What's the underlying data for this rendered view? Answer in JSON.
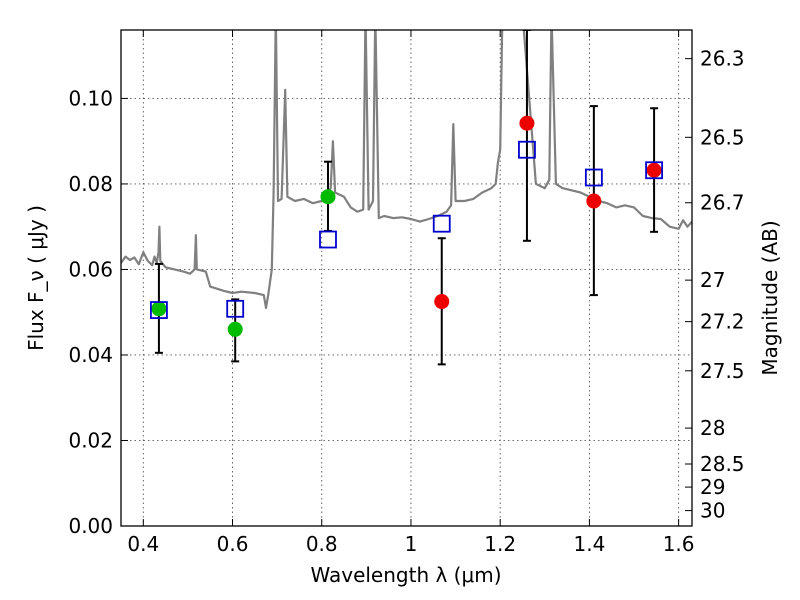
{
  "chart_data": {
    "type": "scatter",
    "xlabel": "Wavelength  λ (μm)",
    "ylabel": "Flux  F_ν  ( μJy )",
    "ylabel_right": "Magnitude (AB)",
    "xlim": [
      0.35,
      1.63
    ],
    "ylim": [
      0.0,
      0.116
    ],
    "grid": true,
    "x_ticks": [
      0.4,
      0.6,
      0.8,
      1.0,
      1.2,
      1.4,
      1.6
    ],
    "x_tick_labels": [
      "0.4",
      "0.6",
      "0.8",
      "1",
      "1.2",
      "1.4",
      "1.6"
    ],
    "y_ticks": [
      0.0,
      0.02,
      0.04,
      0.06,
      0.08,
      0.1
    ],
    "y_tick_labels": [
      "0.00",
      "0.02",
      "0.04",
      "0.06",
      "0.08",
      "0.10"
    ],
    "right_ticks": [
      {
        "label": "26.3",
        "flux": 0.1093
      },
      {
        "label": "26.5",
        "flux": 0.0909
      },
      {
        "label": "26.7",
        "flux": 0.0756
      },
      {
        "label": "27",
        "flux": 0.0575
      },
      {
        "label": "27.2",
        "flux": 0.0478
      },
      {
        "label": "27.5",
        "flux": 0.0363
      },
      {
        "label": "28",
        "flux": 0.0229
      },
      {
        "label": "28.5",
        "flux": 0.0145
      },
      {
        "label": "29",
        "flux": 0.0091
      },
      {
        "label": "30",
        "flux": 0.0036
      }
    ],
    "colors": {
      "model": "#808080",
      "green": "#00bb00",
      "red": "#ee0000",
      "square": "#0000cc",
      "errorbar": "#000000",
      "grid": "#555555"
    },
    "series": [
      {
        "points": [
          {
            "x": 0.435,
            "y": 0.0508,
            "yerr_low": 0.0405,
            "yerr_high": 0.0613
          },
          {
            "x": 0.606,
            "y": 0.046,
            "yerr_low": 0.0385,
            "yerr_high": 0.053
          },
          {
            "x": 0.814,
            "y": 0.077,
            "yerr_low": 0.069,
            "yerr_high": 0.0852
          }
        ],
        "color": "green",
        "marker": "circle"
      },
      {
        "points": [
          {
            "x": 1.069,
            "y": 0.0525,
            "yerr_low": 0.0378,
            "yerr_high": 0.0673
          },
          {
            "x": 1.26,
            "y": 0.0942,
            "yerr_low": 0.0667,
            "yerr_high": 0.116
          },
          {
            "x": 1.41,
            "y": 0.076,
            "yerr_low": 0.054,
            "yerr_high": 0.0982
          },
          {
            "x": 1.545,
            "y": 0.0832,
            "yerr_low": 0.0688,
            "yerr_high": 0.0977
          }
        ],
        "color": "red",
        "marker": "circle"
      },
      {
        "points": [
          {
            "x": 0.435,
            "y": 0.0505
          },
          {
            "x": 0.606,
            "y": 0.0508
          },
          {
            "x": 0.814,
            "y": 0.067
          },
          {
            "x": 1.069,
            "y": 0.0707
          },
          {
            "x": 1.26,
            "y": 0.088
          },
          {
            "x": 1.41,
            "y": 0.0815
          },
          {
            "x": 1.545,
            "y": 0.0832
          }
        ],
        "color": "square",
        "marker": "open-square"
      },
      {
        "points": [
          [
            0.35,
            0.0615
          ],
          [
            0.36,
            0.063
          ],
          [
            0.37,
            0.0622
          ],
          [
            0.38,
            0.0628
          ],
          [
            0.39,
            0.0612
          ],
          [
            0.4,
            0.064
          ],
          [
            0.41,
            0.062
          ],
          [
            0.42,
            0.061
          ],
          [
            0.425,
            0.063
          ],
          [
            0.43,
            0.0615
          ],
          [
            0.434,
            0.064
          ],
          [
            0.436,
            0.07
          ],
          [
            0.438,
            0.062
          ],
          [
            0.45,
            0.0605
          ],
          [
            0.47,
            0.06
          ],
          [
            0.49,
            0.0595
          ],
          [
            0.505,
            0.059
          ],
          [
            0.515,
            0.06
          ],
          [
            0.518,
            0.068
          ],
          [
            0.52,
            0.06
          ],
          [
            0.54,
            0.0595
          ],
          [
            0.55,
            0.056
          ],
          [
            0.58,
            0.055
          ],
          [
            0.6,
            0.0545
          ],
          [
            0.62,
            0.0548
          ],
          [
            0.65,
            0.0545
          ],
          [
            0.67,
            0.054
          ],
          [
            0.675,
            0.051
          ],
          [
            0.68,
            0.054
          ],
          [
            0.688,
            0.06
          ],
          [
            0.692,
            0.078
          ],
          [
            0.697,
            0.12
          ],
          [
            0.702,
            0.076
          ],
          [
            0.71,
            0.0765
          ],
          [
            0.718,
            0.102
          ],
          [
            0.723,
            0.077
          ],
          [
            0.74,
            0.076
          ],
          [
            0.76,
            0.0765
          ],
          [
            0.78,
            0.0755
          ],
          [
            0.8,
            0.076
          ],
          [
            0.82,
            0.079
          ],
          [
            0.825,
            0.09
          ],
          [
            0.83,
            0.078
          ],
          [
            0.85,
            0.077
          ],
          [
            0.865,
            0.0745
          ],
          [
            0.88,
            0.0735
          ],
          [
            0.893,
            0.074
          ],
          [
            0.898,
            0.12
          ],
          [
            0.905,
            0.074
          ],
          [
            0.915,
            0.076
          ],
          [
            0.92,
            0.12
          ],
          [
            0.928,
            0.072
          ],
          [
            0.94,
            0.0725
          ],
          [
            0.96,
            0.072
          ],
          [
            0.98,
            0.0722
          ],
          [
            1.0,
            0.0718
          ],
          [
            1.02,
            0.0712
          ],
          [
            1.04,
            0.0718
          ],
          [
            1.06,
            0.0725
          ],
          [
            1.08,
            0.0735
          ],
          [
            1.09,
            0.075
          ],
          [
            1.095,
            0.094
          ],
          [
            1.1,
            0.076
          ],
          [
            1.12,
            0.076
          ],
          [
            1.14,
            0.0765
          ],
          [
            1.16,
            0.078
          ],
          [
            1.18,
            0.079
          ],
          [
            1.19,
            0.08
          ],
          [
            1.195,
            0.085
          ],
          [
            1.2,
            0.088
          ],
          [
            1.205,
            0.12
          ],
          [
            1.25,
            0.12
          ],
          [
            1.28,
            0.08
          ],
          [
            1.3,
            0.079
          ],
          [
            1.31,
            0.081
          ],
          [
            1.315,
            0.12
          ],
          [
            1.325,
            0.08
          ],
          [
            1.34,
            0.079
          ],
          [
            1.36,
            0.0785
          ],
          [
            1.38,
            0.078
          ],
          [
            1.4,
            0.077
          ],
          [
            1.42,
            0.076
          ],
          [
            1.44,
            0.0755
          ],
          [
            1.46,
            0.0745
          ],
          [
            1.48,
            0.075
          ],
          [
            1.5,
            0.0745
          ],
          [
            1.52,
            0.0725
          ],
          [
            1.54,
            0.072
          ],
          [
            1.56,
            0.0718
          ],
          [
            1.58,
            0.07
          ],
          [
            1.6,
            0.0695
          ],
          [
            1.61,
            0.0715
          ],
          [
            1.62,
            0.07
          ],
          [
            1.63,
            0.0712
          ]
        ],
        "color": "model",
        "marker": "line"
      }
    ]
  }
}
